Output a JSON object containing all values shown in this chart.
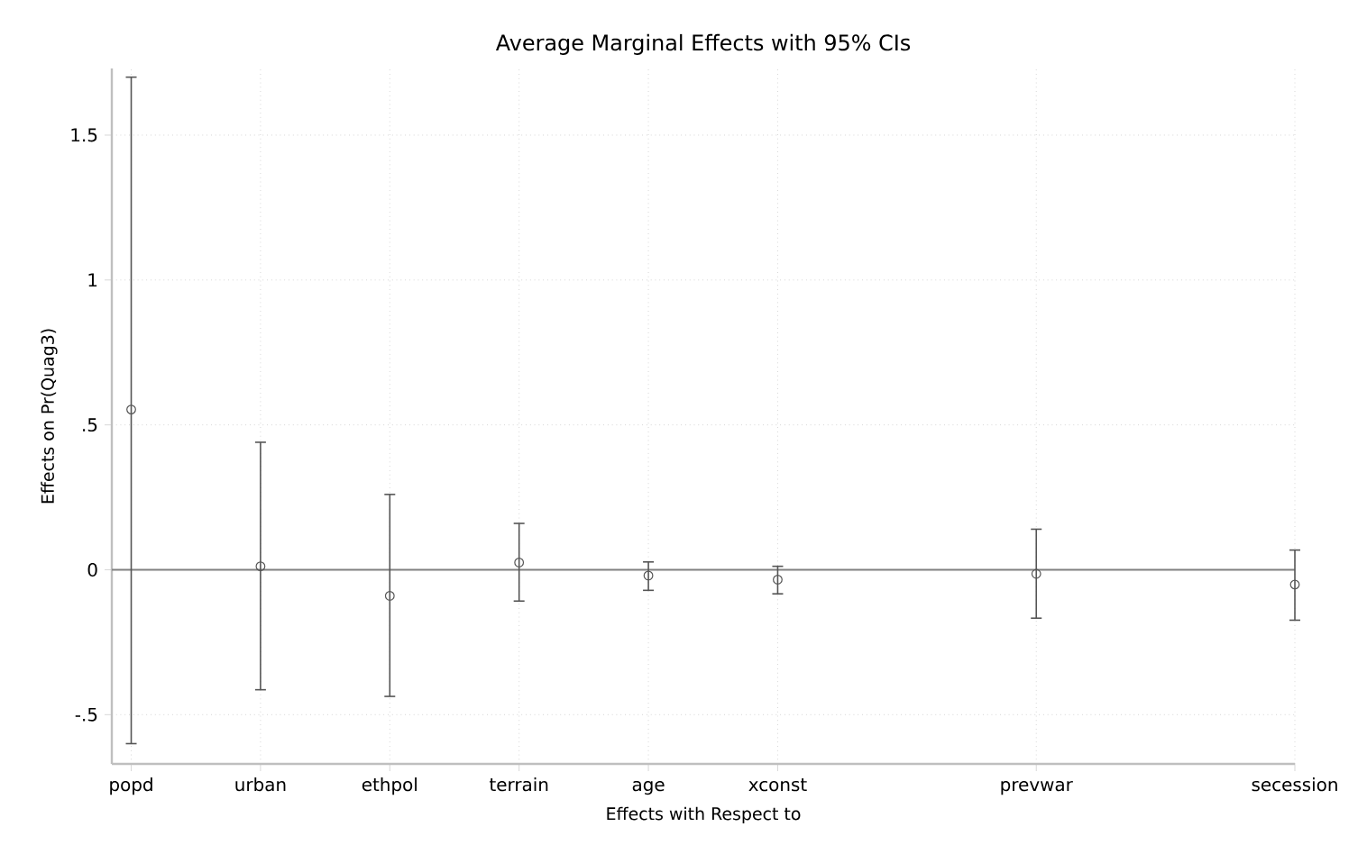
{
  "chart_data": {
    "type": "scatter",
    "title": "Average Marginal Effects with 95% CIs",
    "xlabel": "Effects with Respect to",
    "ylabel": "Effects on Pr(Quag3)",
    "categories": [
      "popd",
      "urban",
      "ethpol",
      "terrain",
      "age",
      "xconst",
      null,
      "prevwar",
      null,
      "secession"
    ],
    "series": [
      {
        "color": "#555555",
        "values": [
          0.553,
          0.012,
          -0.09,
          0.025,
          -0.02,
          -0.034,
          null,
          -0.014,
          null,
          -0.051
        ],
        "errors": [
          [
            -0.6,
            1.7
          ],
          [
            -0.414,
            0.44
          ],
          [
            -0.437,
            0.26
          ],
          [
            -0.108,
            0.16
          ],
          [
            -0.071,
            0.027
          ],
          [
            -0.083,
            0.012
          ],
          null,
          [
            -0.167,
            0.14
          ],
          null,
          [
            -0.174,
            0.068
          ]
        ]
      }
    ],
    "ylim": [
      -0.67,
      1.73
    ],
    "yticks": [
      {
        "value": -0.5,
        "label": "-.5"
      },
      0,
      {
        "value": 0.5,
        "label": ".5"
      },
      1,
      {
        "value": 1.5,
        "label": "1.5"
      }
    ],
    "ref_lines": [
      {
        "axis": "y",
        "value": 0,
        "color": "#808080"
      }
    ],
    "grid": true,
    "marker": "circle"
  }
}
